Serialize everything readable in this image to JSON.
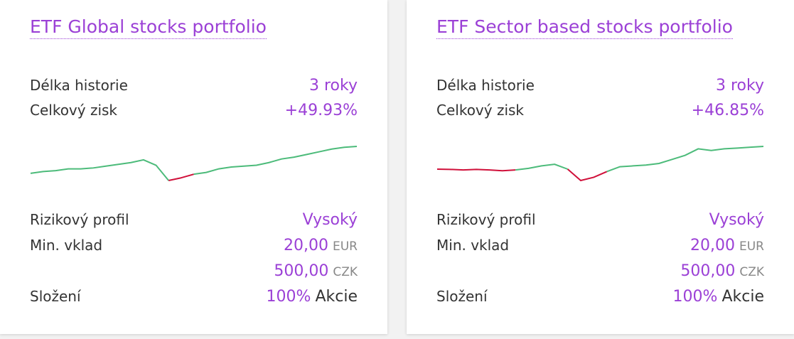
{
  "cards": [
    {
      "title": "ETF Global stocks portfolio",
      "rows": [
        {
          "label": "Délka historie",
          "value": "3 roky"
        },
        {
          "label": "Celkový zisk",
          "value": "+49.93%"
        }
      ],
      "chart_data": {
        "type": "line",
        "up_color": "#4cbb7a",
        "down_color": "#d0103a",
        "values": [
          0,
          3.2,
          4.8,
          8,
          8,
          9.6,
          12.8,
          16,
          19.2,
          24,
          14.4,
          -12.8,
          -8,
          -1.6,
          1.6,
          8,
          11.2,
          12.8,
          14.4,
          19.2,
          25.6,
          28.8,
          33.6,
          38.4,
          43.2,
          46.4,
          48
        ]
      },
      "details": [
        {
          "label": "Rizikový profil",
          "value": "Vysoký"
        },
        {
          "label": "Min. vklad",
          "value": "20,00",
          "unit": "EUR"
        },
        {
          "value": "500,00",
          "unit": "CZK"
        },
        {
          "label": "Složení",
          "value": "100%",
          "note": "Akcie"
        }
      ]
    },
    {
      "title": "ETF Sector based stocks portfolio",
      "rows": [
        {
          "label": "Délka historie",
          "value": "3 roky"
        },
        {
          "label": "Celkový zisk",
          "value": "+46.85%"
        }
      ],
      "chart_data": {
        "type": "line",
        "up_color": "#4cbb7a",
        "down_color": "#d0103a",
        "values": [
          0,
          -0.5,
          -1.7,
          -0.5,
          -1.7,
          -3.3,
          -1.7,
          1.7,
          6.7,
          10,
          0,
          -23.4,
          -16.7,
          -5,
          5,
          6.7,
          8.4,
          11.7,
          20,
          28.4,
          41.8,
          38.4,
          41.8,
          43.4,
          45.1,
          46.8
        ]
      },
      "details": [
        {
          "label": "Rizikový profil",
          "value": "Vysoký"
        },
        {
          "label": "Min. vklad",
          "value": "20,00",
          "unit": "EUR"
        },
        {
          "value": "500,00",
          "unit": "CZK"
        },
        {
          "label": "Složení",
          "value": "100%",
          "note": "Akcie"
        }
      ]
    }
  ]
}
